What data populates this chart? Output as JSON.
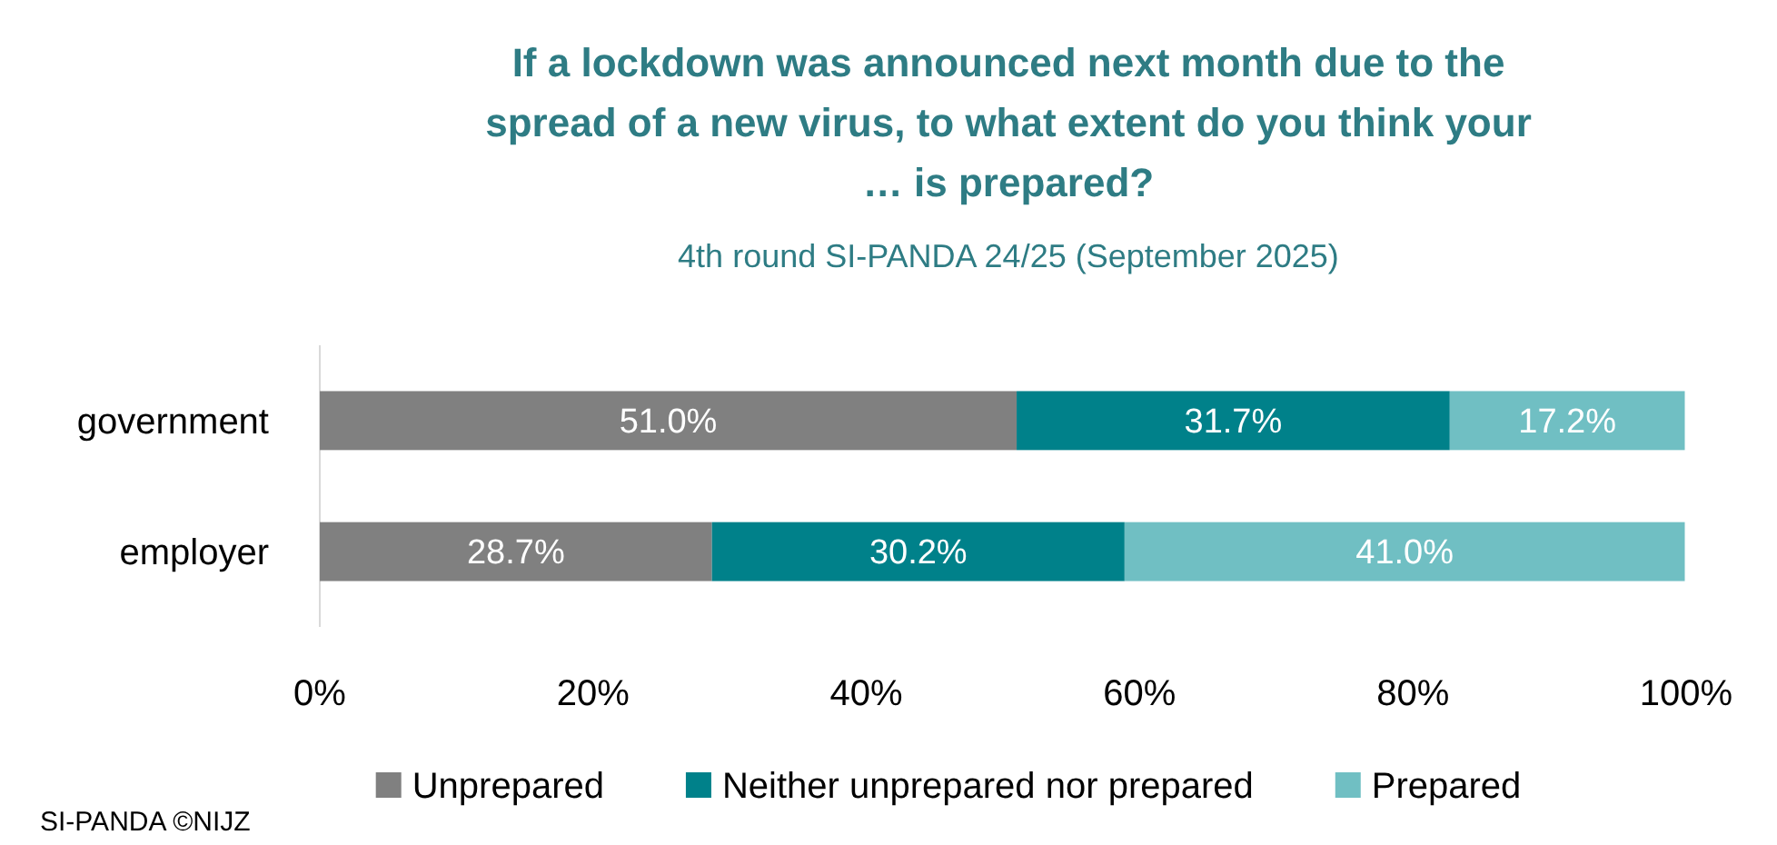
{
  "chart_data": {
    "type": "bar",
    "orientation": "horizontal",
    "stacked": true,
    "title": "If a lockdown was announced next month due to the spread of a new virus, to what extent do you think your … is prepared?",
    "subtitle": "4th round SI-PANDA 24/25 (September 2025)",
    "categories": [
      "government",
      "employer"
    ],
    "series": [
      {
        "name": "Unprepared",
        "color": "#808080",
        "values": [
          51.0,
          28.7
        ],
        "value_labels": [
          "51.0%",
          "28.7%"
        ]
      },
      {
        "name": "Neither unprepared nor prepared",
        "color": "#00818a",
        "values": [
          31.7,
          30.2
        ],
        "value_labels": [
          "31.7%",
          "30.2%"
        ]
      },
      {
        "name": "Prepared",
        "color": "#70bfc3",
        "values": [
          17.2,
          41.0
        ],
        "value_labels": [
          "17.2%",
          "41.0%"
        ]
      }
    ],
    "xlim": [
      0,
      100
    ],
    "xticks": [
      {
        "value": 0,
        "label": "0%"
      },
      {
        "value": 20,
        "label": "20%"
      },
      {
        "value": 40,
        "label": "40%"
      },
      {
        "value": 60,
        "label": "60%"
      },
      {
        "value": 80,
        "label": "80%"
      },
      {
        "value": 100,
        "label": "100%"
      }
    ],
    "legend": "bottom",
    "annotations": [
      "SI-PANDA ©NIJZ"
    ]
  }
}
